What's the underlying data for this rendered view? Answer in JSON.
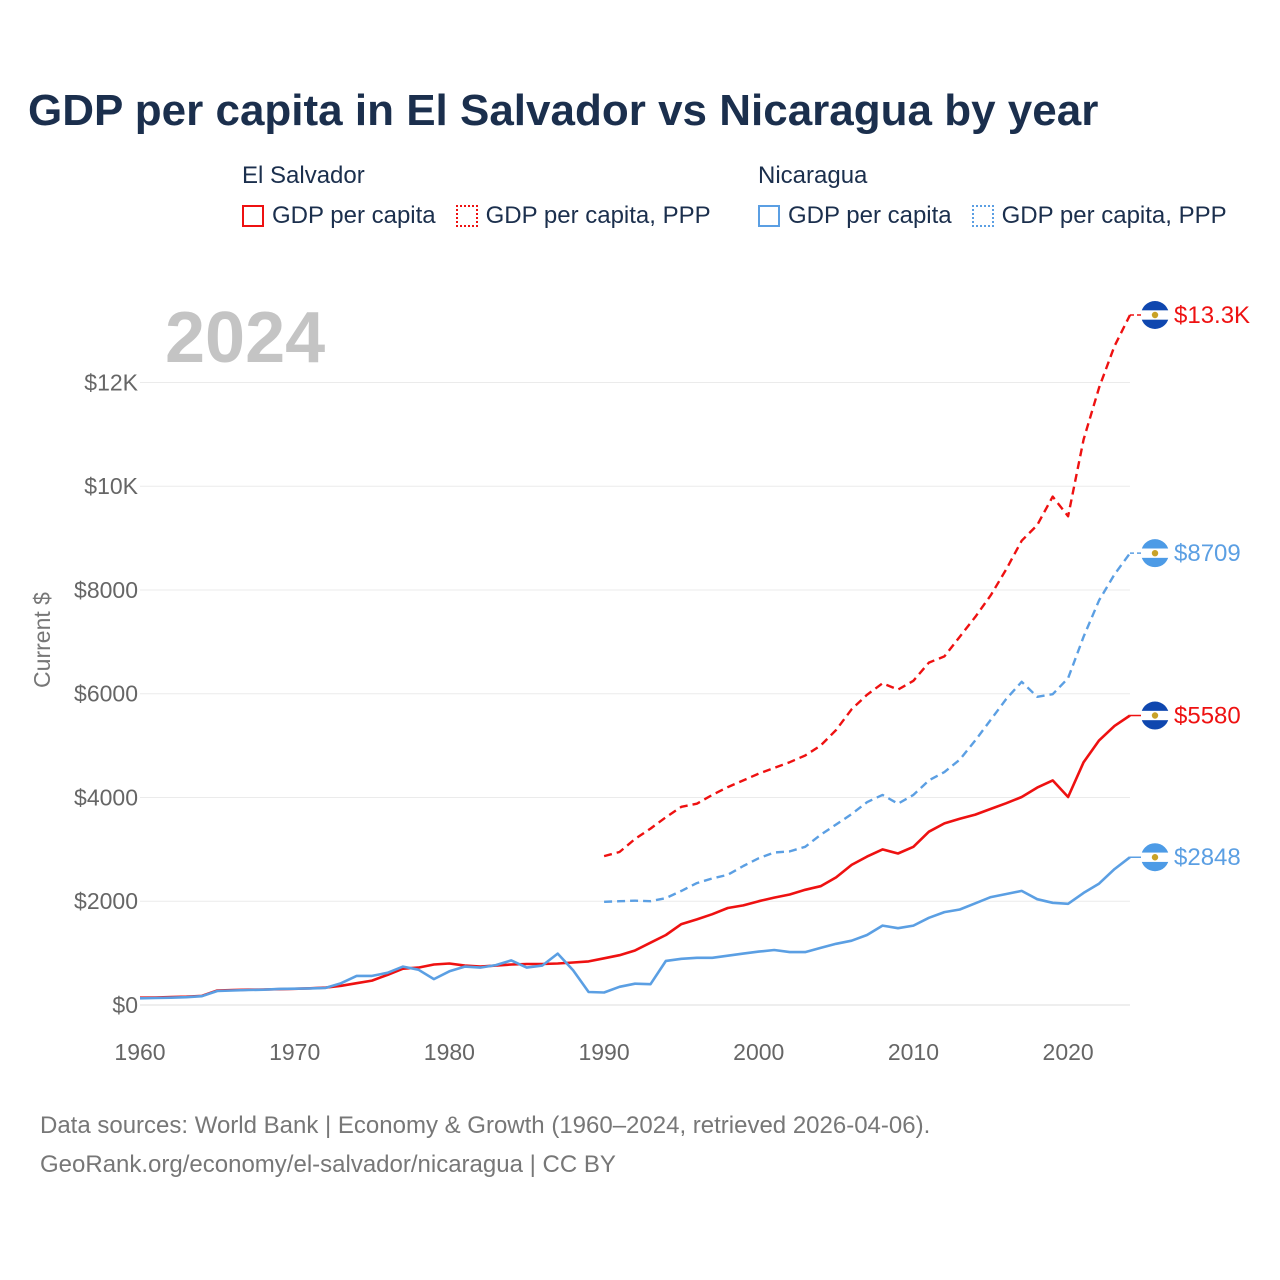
{
  "title": "GDP per capita in El Salvador vs Nicaragua by year",
  "legend": {
    "el_salvador": {
      "name": "El Salvador",
      "color": "#ee1111",
      "items": [
        {
          "label": "GDP per capita",
          "style": "solid"
        },
        {
          "label": "GDP per capita, PPP",
          "style": "dotted"
        }
      ]
    },
    "nicaragua": {
      "name": "Nicaragua",
      "color": "#5b9fe3",
      "items": [
        {
          "label": "GDP per capita",
          "style": "solid"
        },
        {
          "label": "GDP per capita, PPP",
          "style": "dotted"
        }
      ]
    }
  },
  "footer": {
    "line1": "Data sources: World Bank | Economy & Growth (1960–2024, retrieved 2026-04-06).",
    "line2": "GeoRank.org/economy/el-salvador/nicaragua | CC BY"
  },
  "chart_data": {
    "type": "line",
    "year_label": "2024",
    "ylabel": "Current $",
    "xlim": [
      1960,
      2024
    ],
    "ylim": [
      0,
      13300
    ],
    "x_ticks": [
      1960,
      1970,
      1980,
      1990,
      2000,
      2010,
      2020
    ],
    "x_tick_labels": [
      "1960",
      "1970",
      "1980",
      "1990",
      "2000",
      "2010",
      "2020"
    ],
    "y_ticks": [
      0,
      2000,
      4000,
      6000,
      8000,
      10000,
      12000
    ],
    "y_tick_labels": [
      "$0",
      "$2000",
      "$4000",
      "$6000",
      "$8000",
      "$10K",
      "$12K"
    ],
    "series": [
      {
        "name": "El Salvador GDP per capita",
        "country": "El Salvador",
        "color": "#ee1111",
        "dash": false,
        "end_label": "$5580",
        "start_year": 1960,
        "values": [
          140,
          145,
          152,
          160,
          175,
          280,
          288,
          295,
          298,
          305,
          312,
          322,
          335,
          370,
          420,
          470,
          580,
          700,
          720,
          780,
          800,
          760,
          740,
          760,
          780,
          790,
          790,
          800,
          820,
          840,
          900,
          960,
          1050,
          1200,
          1350,
          1560,
          1650,
          1750,
          1870,
          1920,
          2000,
          2070,
          2130,
          2220,
          2290,
          2460,
          2700,
          2860,
          3000,
          2920,
          3050,
          3340,
          3500,
          3590,
          3670,
          3780,
          3890,
          4010,
          4190,
          4330,
          4010,
          4680,
          5100,
          5380,
          5580
        ]
      },
      {
        "name": "El Salvador GDP per capita, PPP",
        "country": "El Salvador",
        "color": "#ee1111",
        "dash": true,
        "end_label": "$13.3K",
        "start_year": 1990,
        "values": [
          2870,
          2950,
          3200,
          3400,
          3620,
          3820,
          3880,
          4050,
          4200,
          4330,
          4460,
          4570,
          4680,
          4810,
          5000,
          5300,
          5700,
          5980,
          6200,
          6080,
          6250,
          6600,
          6720,
          7100,
          7480,
          7900,
          8400,
          8950,
          9250,
          9800,
          9420,
          10900,
          11900,
          12700,
          13300
        ]
      },
      {
        "name": "Nicaragua GDP per capita",
        "country": "Nicaragua",
        "color": "#5b9fe3",
        "dash": false,
        "end_label": "$2848",
        "start_year": 1960,
        "values": [
          130,
          135,
          140,
          150,
          170,
          270,
          280,
          290,
          295,
          310,
          315,
          320,
          330,
          420,
          560,
          560,
          620,
          740,
          680,
          500,
          650,
          740,
          720,
          770,
          860,
          720,
          760,
          990,
          670,
          250,
          240,
          350,
          410,
          400,
          850,
          890,
          910,
          910,
          950,
          990,
          1030,
          1060,
          1020,
          1020,
          1100,
          1180,
          1240,
          1350,
          1530,
          1480,
          1530,
          1680,
          1790,
          1840,
          1960,
          2080,
          2140,
          2200,
          2040,
          1970,
          1950,
          2160,
          2340,
          2620,
          2848
        ]
      },
      {
        "name": "Nicaragua GDP per capita, PPP",
        "country": "Nicaragua",
        "color": "#5b9fe3",
        "dash": true,
        "end_label": "$8709",
        "start_year": 1990,
        "values": [
          1990,
          2000,
          2010,
          2000,
          2060,
          2200,
          2350,
          2440,
          2510,
          2680,
          2830,
          2940,
          2960,
          3050,
          3280,
          3480,
          3680,
          3910,
          4050,
          3880,
          4050,
          4330,
          4490,
          4730,
          5100,
          5500,
          5900,
          6230,
          5940,
          5990,
          6300,
          7100,
          7800,
          8300,
          8709
        ]
      }
    ]
  }
}
